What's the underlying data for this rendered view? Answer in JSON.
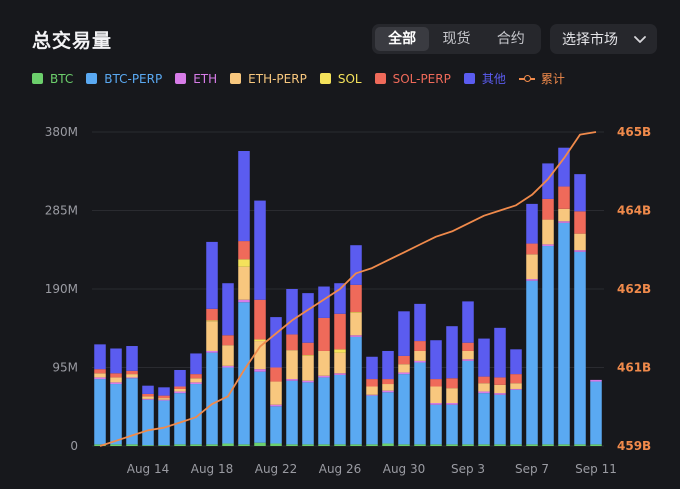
{
  "header": {
    "title": "总交易量",
    "tabs": [
      "全部",
      "现货",
      "合约"
    ],
    "active_tab": 0,
    "market_select": "选择市场"
  },
  "colors": {
    "background": "#17181c",
    "accent_line": "#f08a4b",
    "BTC": "#6ccf6c",
    "BTC-PERP": "#5aa9f2",
    "ETH": "#d77ce8",
    "ETH-PERP": "#f8c77e",
    "SOL": "#f4e25b",
    "SOL-PERP": "#ef6a5a",
    "其他": "#5b5cf0"
  },
  "legend": [
    {
      "label": "BTC",
      "color": "#6ccf6c"
    },
    {
      "label": "BTC-PERP",
      "color": "#5aa9f2"
    },
    {
      "label": "ETH",
      "color": "#d77ce8"
    },
    {
      "label": "ETH-PERP",
      "color": "#f8c77e"
    },
    {
      "label": "SOL",
      "color": "#f4e25b"
    },
    {
      "label": "SOL-PERP",
      "color": "#ef6a5a"
    },
    {
      "label": "其他",
      "color": "#5b5cf0"
    },
    {
      "label": "累计",
      "color": "#f08a4b",
      "line": true
    }
  ],
  "chart_data": {
    "type": "bar",
    "stacked": true,
    "categories": [
      "Aug 11",
      "Aug 12",
      "Aug 13",
      "Aug 14",
      "Aug 15",
      "Aug 16",
      "Aug 17",
      "Aug 18",
      "Aug 19",
      "Aug 20",
      "Aug 21",
      "Aug 22",
      "Aug 23",
      "Aug 24",
      "Aug 25",
      "Aug 26",
      "Aug 27",
      "Aug 28",
      "Aug 29",
      "Aug 30",
      "Aug 31",
      "Sep 1",
      "Sep 2",
      "Sep 3",
      "Sep 4",
      "Sep 5",
      "Sep 6",
      "Sep 7",
      "Sep 8",
      "Sep 9",
      "Sep 10",
      "Sep 11"
    ],
    "x_tick_labels": [
      "Aug 14",
      "Aug 18",
      "Aug 22",
      "Aug 26",
      "Aug 30",
      "Sep 3",
      "Sep 7",
      "Sep 11"
    ],
    "x_tick_index": [
      3,
      7,
      11,
      15,
      19,
      23,
      27,
      31
    ],
    "y_tick_labels": [
      "0",
      "95M",
      "190M",
      "285M",
      "380M"
    ],
    "y_tick_values": [
      0,
      95,
      190,
      285,
      380
    ],
    "ylim": [
      0,
      380
    ],
    "y_unit": "M",
    "y2_tick_labels": [
      "459B",
      "461B",
      "462B",
      "464B",
      "465B"
    ],
    "y2_tick_values": [
      459,
      460.5,
      462,
      463.5,
      465
    ],
    "y2lim": [
      459,
      465
    ],
    "series": [
      {
        "name": "BTC",
        "color": "#6ccf6c",
        "values": [
          2,
          2,
          2,
          1,
          1,
          2,
          2,
          2,
          3,
          2,
          4,
          3,
          2,
          2,
          2,
          2,
          2,
          2,
          3,
          2,
          2,
          2,
          2,
          2,
          2,
          2,
          2,
          2,
          2,
          2,
          2,
          2
        ]
      },
      {
        "name": "BTC-PERP",
        "color": "#5aa9f2",
        "values": [
          79,
          73,
          80,
          55,
          54,
          62,
          73,
          111,
          92,
          172,
          86,
          45,
          77,
          75,
          81,
          84,
          130,
          59,
          62,
          85,
          99,
          48,
          48,
          101,
          62,
          60,
          66,
          198,
          240,
          268,
          233,
          76
        ]
      },
      {
        "name": "ETH",
        "color": "#d77ce8",
        "values": [
          2,
          2,
          1,
          1,
          1,
          2,
          2,
          2,
          2,
          3,
          3,
          2,
          2,
          2,
          2,
          2,
          2,
          1,
          2,
          2,
          2,
          2,
          2,
          2,
          2,
          2,
          1,
          2,
          2,
          2,
          2,
          2
        ]
      },
      {
        "name": "ETH-PERP",
        "color": "#f8c77e",
        "values": [
          5,
          6,
          4,
          3,
          2,
          3,
          5,
          36,
          25,
          40,
          34,
          28,
          35,
          30,
          30,
          25,
          27,
          10,
          8,
          10,
          12,
          20,
          18,
          10,
          10,
          10,
          7,
          30,
          30,
          15,
          20,
          0
        ]
      },
      {
        "name": "SOL",
        "color": "#f4e25b",
        "values": [
          0,
          0,
          0,
          0,
          0,
          0,
          0,
          1,
          0,
          9,
          2,
          0,
          0,
          1,
          0,
          4,
          1,
          0,
          0,
          0,
          0,
          0,
          0,
          0,
          0,
          0,
          0,
          0,
          0,
          0,
          0,
          0
        ]
      },
      {
        "name": "SOL-PERP",
        "color": "#ef6a5a",
        "values": [
          5,
          5,
          4,
          3,
          3,
          3,
          5,
          14,
          12,
          22,
          48,
          17,
          19,
          15,
          40,
          43,
          33,
          9,
          6,
          10,
          12,
          9,
          12,
          10,
          8,
          9,
          11,
          13,
          25,
          27,
          27,
          0
        ]
      },
      {
        "name": "其他",
        "color": "#5b5cf0",
        "values": [
          30,
          30,
          30,
          10,
          10,
          20,
          25,
          81,
          63,
          109,
          120,
          61,
          55,
          60,
          38,
          37,
          48,
          27,
          34,
          54,
          45,
          47,
          63,
          50,
          46,
          60,
          30,
          48,
          43,
          47,
          45,
          0
        ]
      }
    ],
    "cumulative": {
      "name": "累计",
      "color": "#f08a4b",
      "axis": "right",
      "values": [
        459.0,
        459.1,
        459.2,
        459.3,
        459.35,
        459.45,
        459.55,
        459.8,
        459.95,
        460.45,
        460.9,
        461.15,
        461.4,
        461.6,
        461.8,
        462.0,
        462.3,
        462.4,
        462.55,
        462.7,
        462.85,
        463.0,
        463.1,
        463.25,
        463.4,
        463.5,
        463.6,
        463.8,
        464.1,
        464.5,
        464.95,
        465.0
      ]
    }
  }
}
